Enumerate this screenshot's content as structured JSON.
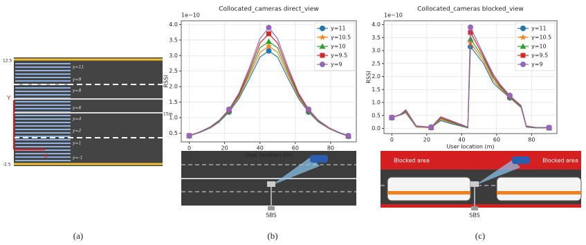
{
  "chart_data": [
    {
      "type": "line",
      "title": "Collocated_cameras direct_view",
      "exponent_label": "1e−10",
      "x_label": "User location (m)",
      "y_label": "RSSI",
      "x": [
        0,
        6,
        12,
        17,
        22.5,
        28,
        34,
        40,
        45,
        50,
        56,
        62,
        67.5,
        73,
        79,
        85,
        90
      ],
      "series": [
        {
          "name": "y=11",
          "color": "#1f77b4",
          "marker": "o",
          "values": [
            0.41,
            0.52,
            0.67,
            0.86,
            1.18,
            1.6,
            2.25,
            2.95,
            3.15,
            2.95,
            2.25,
            1.6,
            1.18,
            0.86,
            0.65,
            0.5,
            0.4
          ]
        },
        {
          "name": "y=10.5",
          "color": "#ff7f0e",
          "marker": "*",
          "values": [
            0.41,
            0.53,
            0.68,
            0.88,
            1.21,
            1.66,
            2.35,
            3.1,
            3.3,
            3.1,
            2.35,
            1.66,
            1.21,
            0.88,
            0.66,
            0.51,
            0.4
          ]
        },
        {
          "name": "y=10",
          "color": "#2ca02c",
          "marker": "^",
          "values": [
            0.42,
            0.53,
            0.69,
            0.89,
            1.23,
            1.7,
            2.43,
            3.25,
            3.45,
            3.25,
            2.43,
            1.7,
            1.23,
            0.89,
            0.67,
            0.51,
            0.41
          ]
        },
        {
          "name": "y=9.5",
          "color": "#d62728",
          "marker": "s",
          "values": [
            0.42,
            0.54,
            0.7,
            0.91,
            1.25,
            1.74,
            2.52,
            3.4,
            3.7,
            3.4,
            2.52,
            1.74,
            1.25,
            0.91,
            0.67,
            0.52,
            0.41
          ]
        },
        {
          "name": "y=9",
          "color": "#9467bd",
          "marker": "o",
          "values": [
            0.42,
            0.54,
            0.71,
            0.92,
            1.27,
            1.78,
            2.61,
            3.54,
            3.9,
            3.54,
            2.61,
            1.78,
            1.27,
            0.92,
            0.68,
            0.52,
            0.42
          ]
        }
      ],
      "xlim": [
        -4.5,
        94.5
      ],
      "xticks": [
        0,
        20,
        40,
        60,
        80
      ],
      "ylim": [
        0.22,
        4.12
      ],
      "yticks": [
        0.5,
        {
          "value": 1,
          "label": "1.0"
        },
        1.5,
        {
          "value": 2,
          "label": "2.0"
        },
        2.5,
        {
          "value": 3,
          "label": "3.0"
        },
        3.5,
        {
          "value": 4,
          "label": "4.0"
        }
      ],
      "grid": true,
      "legend": "upper right"
    },
    {
      "type": "line",
      "title": "Collocated_cameras blocked_view",
      "exponent_label": "1e−10",
      "x_label": "User location (m)",
      "y_label": "RSSI",
      "x": [
        0,
        5,
        8,
        14,
        22.5,
        28,
        34,
        43.5,
        45,
        52.5,
        58,
        62,
        67.5,
        74,
        77,
        82,
        90
      ],
      "series": [
        {
          "name": "y=11",
          "color": "#1f77b4",
          "marker": "o",
          "values": [
            0.41,
            0.52,
            0.6,
            0.05,
            0.03,
            0.3,
            0.18,
            0.02,
            3.15,
            2.5,
            1.75,
            1.5,
            1.18,
            0.8,
            0.05,
            0.02,
            0.02
          ]
        },
        {
          "name": "y=10.5",
          "color": "#ff7f0e",
          "marker": "*",
          "values": [
            0.41,
            0.53,
            0.63,
            0.06,
            0.03,
            0.34,
            0.21,
            0.03,
            3.3,
            2.6,
            1.85,
            1.55,
            1.21,
            0.82,
            0.06,
            0.03,
            0.02
          ]
        },
        {
          "name": "y=10",
          "color": "#2ca02c",
          "marker": "^",
          "values": [
            0.42,
            0.54,
            0.66,
            0.08,
            0.04,
            0.38,
            0.24,
            0.03,
            3.45,
            2.7,
            1.95,
            1.6,
            1.23,
            0.84,
            0.07,
            0.03,
            0.02
          ]
        },
        {
          "name": "y=9.5",
          "color": "#d62728",
          "marker": "s",
          "values": [
            0.42,
            0.54,
            0.69,
            0.09,
            0.04,
            0.42,
            0.27,
            0.04,
            3.7,
            2.78,
            2.02,
            1.65,
            1.25,
            0.86,
            0.08,
            0.04,
            0.03
          ]
        },
        {
          "name": "y=9",
          "color": "#9467bd",
          "marker": "o",
          "values": [
            0.42,
            0.55,
            0.72,
            0.1,
            0.05,
            0.45,
            0.3,
            0.05,
            3.9,
            2.85,
            2.1,
            1.7,
            1.27,
            0.88,
            0.1,
            0.04,
            0.03
          ]
        }
      ],
      "xlim": [
        -4.5,
        94.5
      ],
      "xticks": [
        0,
        20,
        40,
        60,
        80
      ],
      "ylim": [
        -0.2,
        4.15
      ],
      "yticks": [
        {
          "value": 0,
          "label": "0.0"
        },
        0.5,
        {
          "value": 1,
          "label": "1.0"
        },
        1.5,
        {
          "value": 2,
          "label": "2.0"
        },
        2.5,
        {
          "value": 3,
          "label": "3.0"
        },
        3.5,
        {
          "value": 4,
          "label": "4.0"
        }
      ],
      "grid": true,
      "legend": "upper right"
    }
  ],
  "panel_a": {
    "y_top": "12.5",
    "y_bottom": "-2.5",
    "width_label": "15m",
    "axis_y": "Y",
    "axis_x": "X",
    "lane_labels": [
      "y=11",
      "y=9",
      "y=8",
      "y=6",
      "y=4",
      "y=2",
      "y=1",
      "y=-1"
    ]
  },
  "scene_b": {
    "station": "SBS"
  },
  "scene_c": {
    "station": "SBS",
    "blocked": [
      "Blocked area",
      "Blocked area"
    ]
  },
  "captions": [
    "(a)",
    "(b)",
    "(c)"
  ]
}
